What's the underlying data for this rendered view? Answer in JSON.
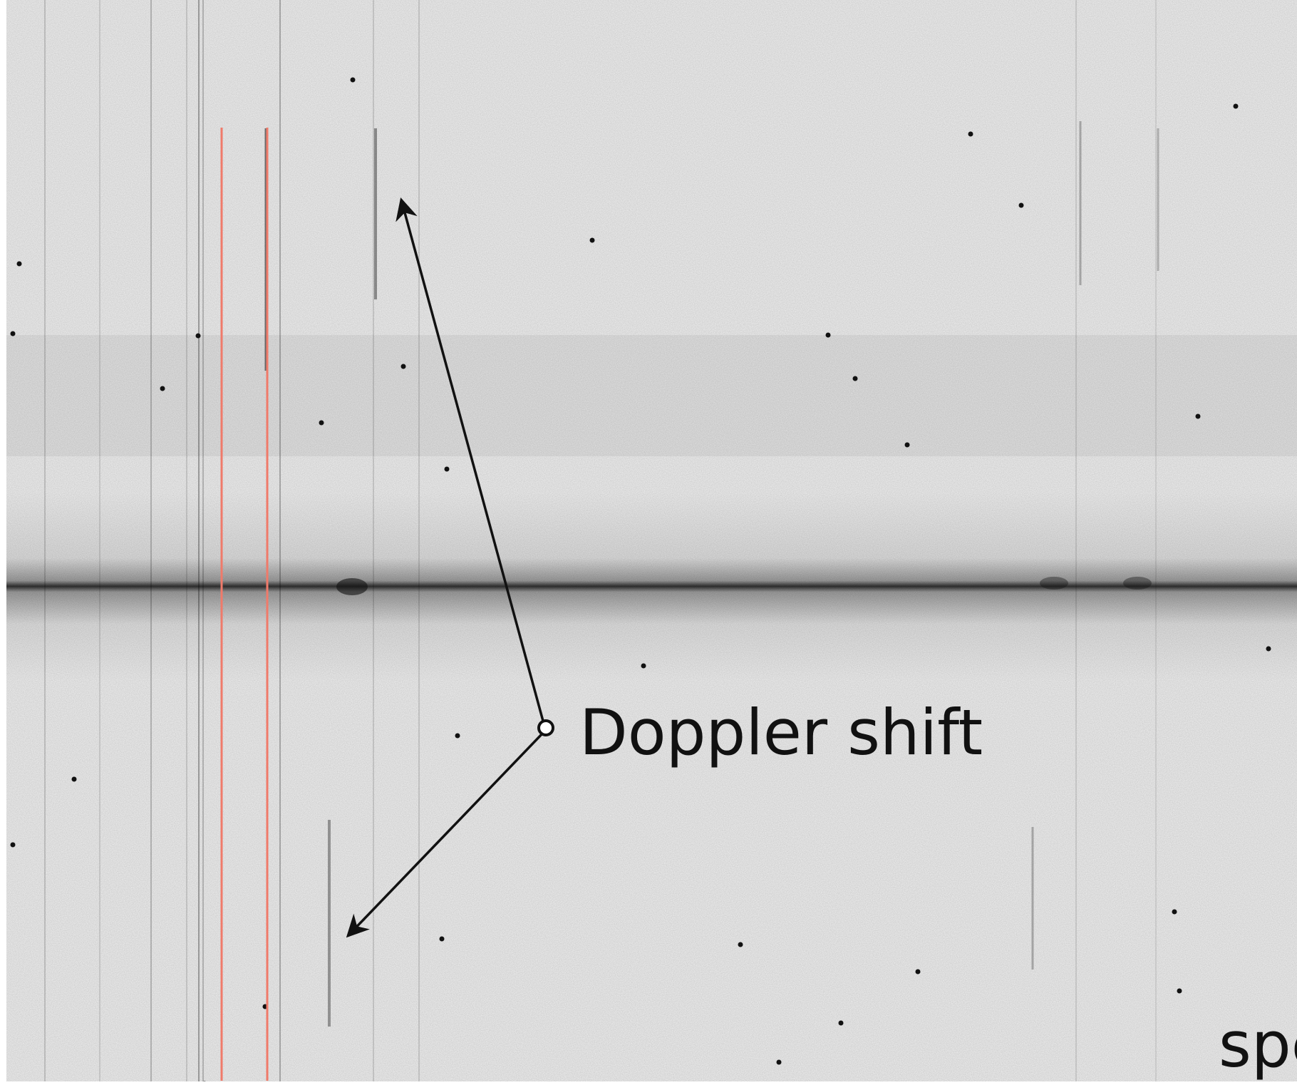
{
  "annotation": {
    "label": "Doppler shift"
  },
  "corner_text": "spe"
}
